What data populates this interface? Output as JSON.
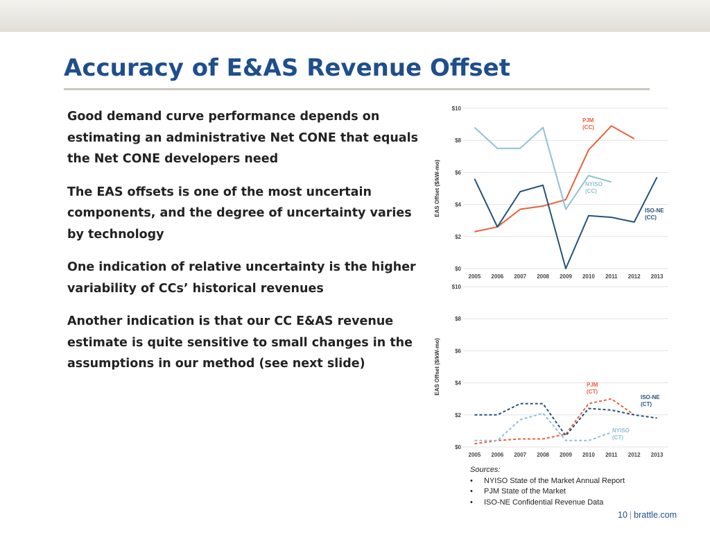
{
  "slide": {
    "title": "Accuracy of E&AS Revenue Offset",
    "bullets": [
      "Good demand curve performance depends on estimating an administrative Net CONE that equals the Net CONE developers need",
      "The EAS offsets is one of the most uncertain components, and the degree of uncertainty varies by technology",
      "One indication of relative uncertainty is the higher variability of CCs’ historical revenues",
      "Another indication is that our CC E&AS revenue estimate is quite sensitive to small changes in the assumptions in our method (see next slide)"
    ],
    "sources_heading": "Sources:",
    "sources": [
      "NYISO State of the Market Annual Report",
      "PJM State of the Market",
      "ISO-NE Confidential Revenue Data"
    ],
    "page_number": "10",
    "footer_site": "brattle.com"
  },
  "chart_data": [
    {
      "type": "line",
      "ylabel": "EAS Offset ($/kW-mo)",
      "x": [
        "2005",
        "2006",
        "2007",
        "2008",
        "2009",
        "2010",
        "2011",
        "2012",
        "2013"
      ],
      "yticks": [
        "$0",
        "$2",
        "$4",
        "$6",
        "$8",
        "$10"
      ],
      "ylim": [
        0,
        10
      ],
      "grid": true,
      "line_style": "solid",
      "series": [
        {
          "name": "PJM (CC)",
          "name_lines": [
            "PJM",
            "(CC)"
          ],
          "color": "#e8613a",
          "values": [
            2.3,
            2.6,
            3.7,
            3.9,
            4.3,
            7.4,
            8.9,
            8.1,
            null
          ]
        },
        {
          "name": "NYISO (CC)",
          "name_lines": [
            "NYISO",
            "(CC)"
          ],
          "color": "#8fc0d6",
          "values": [
            8.8,
            7.5,
            7.5,
            8.8,
            3.7,
            5.8,
            5.4,
            null,
            null
          ]
        },
        {
          "name": "ISO-NE (CC)",
          "name_lines": [
            "ISO-NE",
            "(CC)"
          ],
          "color": "#24527a",
          "values": [
            5.6,
            2.6,
            4.8,
            5.2,
            0.0,
            3.3,
            3.2,
            2.9,
            5.7
          ]
        }
      ]
    },
    {
      "type": "line",
      "ylabel": "EAS Offset ($/kW-mo)",
      "x": [
        "2005",
        "2006",
        "2007",
        "2008",
        "2009",
        "2010",
        "2011",
        "2012",
        "2013"
      ],
      "yticks": [
        "$0",
        "$2",
        "$4",
        "$6",
        "$8",
        "$10"
      ],
      "ylim": [
        0,
        10
      ],
      "grid": true,
      "line_style": "dashed",
      "series": [
        {
          "name": "PJM (CT)",
          "name_lines": [
            "PJM",
            "(CT)"
          ],
          "color": "#e8613a",
          "values": [
            0.2,
            0.4,
            0.5,
            0.5,
            0.8,
            2.7,
            3.0,
            2.0,
            null
          ]
        },
        {
          "name": "ISO-NE (CT)",
          "name_lines": [
            "ISO-NE",
            "(CT)"
          ],
          "color": "#24527a",
          "values": [
            2.0,
            2.0,
            2.7,
            2.7,
            0.7,
            2.4,
            2.3,
            2.0,
            1.8
          ]
        },
        {
          "name": "NYISO (CT)",
          "name_lines": [
            "NYISO",
            "(CT)"
          ],
          "color": "#8fc0d6",
          "values": [
            0.4,
            0.4,
            1.7,
            2.1,
            0.4,
            0.4,
            0.9,
            null,
            null
          ]
        }
      ]
    }
  ]
}
